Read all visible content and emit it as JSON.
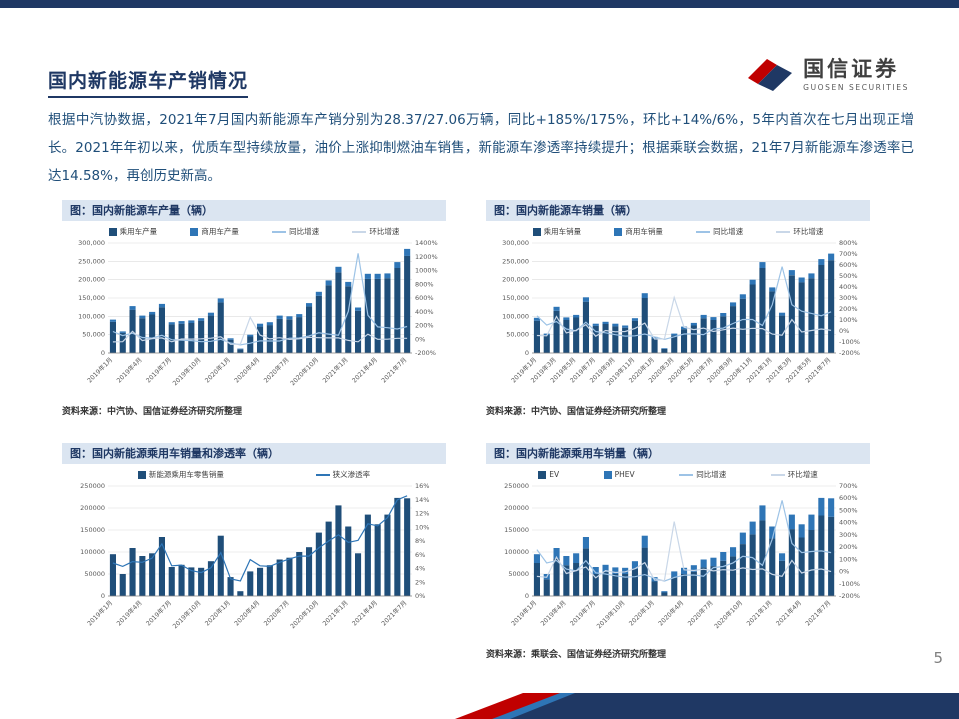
{
  "page": {
    "title": "国内新能源车产销情况",
    "paragraph": "根据中汽协数据，2021年7月国内新能源车产销分别为28.37/27.06万辆，同比+185%/175%，环比+14%/6%，5年内首次在七月出现正增长。2021年年初以来，优质车型持续放量，油价上涨抑制燃油车销售，新能源车渗透率持续提升；根据乘联会数据，21年7月新能源车渗透率已达14.58%，再创历史新高。",
    "page_number": "5",
    "accent_navy": "#1f3864",
    "accent_red": "#c00000"
  },
  "logo": {
    "cn": "国信证券",
    "en": "GUOSEN SECURITIES"
  },
  "chart_data": [
    {
      "type": "bar",
      "title": "图：国内新能源车产量（辆）",
      "source": "资料来源：中汽协、国信证券经济研究所整理",
      "x": [
        "2019年1月",
        "2019年2月",
        "2019年3月",
        "2019年4月",
        "2019年5月",
        "2019年6月",
        "2019年7月",
        "2019年8月",
        "2019年9月",
        "2019年10月",
        "2019年11月",
        "2019年12月",
        "2020年1月",
        "2020年2月",
        "2020年3月",
        "2020年4月",
        "2020年5月",
        "2020年6月",
        "2020年7月",
        "2020年8月",
        "2020年9月",
        "2020年10月",
        "2020年11月",
        "2020年12月",
        "2021年1月",
        "2021年2月",
        "2021年3月",
        "2021年4月",
        "2021年5月",
        "2021年6月",
        "2021年7月"
      ],
      "x_label_every": 3,
      "left_axis": {
        "min": 0,
        "max": 300000,
        "step": 50000,
        "format": "comma"
      },
      "right_axis": {
        "min": -200,
        "max": 1400,
        "step": 200,
        "format": "percent"
      },
      "bar_series": [
        {
          "name": "乘用车产量",
          "color": "#1f4e79",
          "values": [
            85000,
            55000,
            118000,
            95000,
            105000,
            125000,
            78000,
            80000,
            82000,
            88000,
            102000,
            138000,
            36000,
            10000,
            45000,
            72000,
            76000,
            93000,
            92000,
            98000,
            127000,
            156000,
            185000,
            220000,
            182000,
            115000,
            202000,
            202000,
            204000,
            232000,
            265000
          ]
        },
        {
          "name": "商用车产量",
          "color": "#2e75b6",
          "values": [
            6000,
            4000,
            10000,
            7000,
            7000,
            9000,
            6000,
            7000,
            7000,
            7000,
            8000,
            11000,
            4000,
            2000,
            5000,
            8000,
            8000,
            9000,
            8000,
            8000,
            9000,
            11000,
            13000,
            15000,
            12000,
            9000,
            14000,
            14000,
            13000,
            16000,
            19000
          ]
        }
      ],
      "line_series": [
        {
          "name": "同比增速",
          "color": "#9dc3e6",
          "values": [
            113,
            53,
            88,
            25,
            17,
            57,
            -7,
            -12,
            -20,
            -35,
            -30,
            -1,
            -55,
            -82,
            -57,
            -22,
            -26,
            -25,
            15,
            18,
            48,
            94,
            75,
            59,
            405,
            1250,
            349,
            180,
            168,
            149,
            185
          ]
        },
        {
          "name": "环比增速",
          "color": "#c9d7e8",
          "values": [
            -39,
            -35,
            115,
            -20,
            10,
            19,
            -37,
            3,
            2,
            7,
            16,
            35,
            -73,
            -70,
            320,
            60,
            5,
            22,
            -2,
            6,
            28,
            23,
            19,
            19,
            -17,
            -37,
            73,
            0,
            1,
            14,
            14
          ]
        }
      ]
    },
    {
      "type": "bar",
      "title": "图：国内新能源车销量（辆）",
      "source": "资料来源：中汽协、国信证券经济研究所整理",
      "x": [
        "2019年1月",
        "2019年2月",
        "2019年3月",
        "2019年4月",
        "2019年5月",
        "2019年6月",
        "2019年7月",
        "2019年8月",
        "2019年9月",
        "2019年10月",
        "2019年11月",
        "2019年12月",
        "2020年1月",
        "2020年2月",
        "2020年3月",
        "2020年4月",
        "2020年5月",
        "2020年6月",
        "2020年7月",
        "2020年8月",
        "2020年9月",
        "2020年10月",
        "2020年11月",
        "2020年12月",
        "2021年1月",
        "2021年2月",
        "2021年3月",
        "2021年4月",
        "2021年5月",
        "2021年6月",
        "2021年7月"
      ],
      "x_label_every": 2,
      "left_axis": {
        "min": 0,
        "max": 300000,
        "step": 50000,
        "format": "comma"
      },
      "right_axis": {
        "min": -200,
        "max": 800,
        "step": 100,
        "format": "percent"
      },
      "bar_series": [
        {
          "name": "乘用车销量",
          "color": "#1f4e79",
          "values": [
            88000,
            49000,
            115000,
            90000,
            97000,
            140000,
            74000,
            79000,
            73000,
            69000,
            88000,
            150000,
            40000,
            11000,
            48000,
            65000,
            75000,
            95000,
            90000,
            100000,
            128000,
            148000,
            187000,
            232000,
            168000,
            102000,
            212000,
            193000,
            204000,
            240000,
            253000
          ]
        },
        {
          "name": "商用车销量",
          "color": "#2e75b6",
          "values": [
            8000,
            4000,
            11000,
            7000,
            7000,
            12000,
            6000,
            6000,
            7000,
            6000,
            7000,
            13000,
            4000,
            2000,
            5000,
            7000,
            7000,
            9000,
            8000,
            9000,
            10000,
            12000,
            13000,
            16000,
            11000,
            8000,
            14000,
            13000,
            13000,
            16000,
            18000
          ]
        }
      ],
      "line_series": [
        {
          "name": "同比增速",
          "color": "#9dc3e6",
          "values": [
            138,
            54,
            86,
            18,
            2,
            80,
            -5,
            -16,
            -34,
            -46,
            -44,
            -27,
            -54,
            -76,
            -53,
            -27,
            -25,
            -33,
            19,
            26,
            68,
            105,
            105,
            50,
            239,
            585,
            239,
            180,
            160,
            139,
            175
          ]
        },
        {
          "name": "环比增速",
          "color": "#c9d7e8",
          "values": [
            -41,
            -44,
            132,
            -17,
            6,
            57,
            -47,
            5,
            -7,
            -5,
            24,
            72,
            -73,
            -72,
            305,
            35,
            13,
            26,
            -5,
            11,
            26,
            15,
            25,
            22,
            -28,
            -38,
            105,
            -9,
            5,
            18,
            6
          ]
        }
      ]
    },
    {
      "type": "bar",
      "title": "图：国内新能源乘用车销量和渗透率（辆）",
      "source": "",
      "x": [
        "2019年1月",
        "2019年2月",
        "2019年3月",
        "2019年4月",
        "2019年5月",
        "2019年6月",
        "2019年7月",
        "2019年8月",
        "2019年9月",
        "2019年10月",
        "2019年11月",
        "2019年12月",
        "2020年1月",
        "2020年2月",
        "2020年3月",
        "2020年4月",
        "2020年5月",
        "2020年6月",
        "2020年7月",
        "2020年8月",
        "2020年9月",
        "2020年10月",
        "2020年11月",
        "2020年12月",
        "2021年1月",
        "2021年2月",
        "2021年3月",
        "2021年4月",
        "2021年5月",
        "2021年6月",
        "2021年7月"
      ],
      "x_label_every": 3,
      "left_axis": {
        "min": 0,
        "max": 250000,
        "step": 50000,
        "format": "plain"
      },
      "right_axis": {
        "min": 0,
        "max": 16,
        "step": 2,
        "format": "percent"
      },
      "bar_series": [
        {
          "name": "新能源乘用车零售销量",
          "color": "#1f4e79",
          "values": [
            95000,
            50000,
            109000,
            91000,
            97000,
            134000,
            66000,
            71000,
            65000,
            64000,
            79000,
            137000,
            43000,
            11000,
            56000,
            64000,
            70000,
            83000,
            87000,
            100000,
            111000,
            144000,
            169000,
            206000,
            158000,
            97000,
            185000,
            163000,
            185000,
            223000,
            222000
          ]
        }
      ],
      "line_series": [
        {
          "name": "狭义渗透率",
          "color": "#2e75b6",
          "values": [
            4.8,
            4.3,
            5.0,
            4.9,
            5.5,
            7.6,
            4.4,
            4.5,
            3.7,
            3.4,
            4.1,
            6.3,
            2.5,
            2.2,
            5.3,
            4.4,
            4.3,
            4.9,
            5.4,
            5.8,
            5.8,
            7.0,
            8.0,
            8.9,
            7.8,
            8.1,
            10.5,
            10.2,
            11.4,
            14.0,
            14.58
          ]
        }
      ]
    },
    {
      "type": "bar",
      "title": "图：国内新能源乘用车销量（辆）",
      "source": "资料来源：乘联会、国信证券经济研究所整理",
      "x": [
        "2019年1月",
        "2019年2月",
        "2019年3月",
        "2019年4月",
        "2019年5月",
        "2019年6月",
        "2019年7月",
        "2019年8月",
        "2019年9月",
        "2019年10月",
        "2019年11月",
        "2019年12月",
        "2020年1月",
        "2020年2月",
        "2020年3月",
        "2020年4月",
        "2020年5月",
        "2020年6月",
        "2020年7月",
        "2020年8月",
        "2020年9月",
        "2020年10月",
        "2020年11月",
        "2020年12月",
        "2021年1月",
        "2021年2月",
        "2021年3月",
        "2021年4月",
        "2021年5月",
        "2021年6月",
        "2021年7月"
      ],
      "x_label_every": 3,
      "left_axis": {
        "min": 0,
        "max": 250000,
        "step": 50000,
        "format": "plain"
      },
      "right_axis": {
        "min": -200,
        "max": 700,
        "step": 100,
        "format": "percent"
      },
      "bar_series": [
        {
          "name": "EV",
          "color": "#1f4e79",
          "values": [
            75000,
            38000,
            85000,
            70000,
            75000,
            108000,
            50000,
            55000,
            50000,
            50000,
            62000,
            110000,
            33000,
            8000,
            44000,
            50000,
            55000,
            65000,
            68000,
            80000,
            90000,
            118000,
            140000,
            172000,
            131000,
            80000,
            152000,
            133000,
            150000,
            183000,
            180000
          ]
        },
        {
          "name": "PHEV",
          "color": "#2e75b6",
          "values": [
            20000,
            12000,
            24000,
            21000,
            22000,
            26000,
            16000,
            16000,
            15000,
            14000,
            17000,
            27000,
            10000,
            3000,
            12000,
            14000,
            15000,
            18000,
            19000,
            20000,
            21000,
            26000,
            29000,
            34000,
            27000,
            17000,
            33000,
            30000,
            35000,
            40000,
            42000
          ]
        }
      ],
      "line_series": [
        {
          "name": "同比增速",
          "color": "#9dc3e6",
          "values": [
            180,
            70,
            90,
            20,
            5,
            90,
            -10,
            -20,
            -35,
            -45,
            -42,
            -25,
            -55,
            -78,
            -49,
            -30,
            -28,
            -38,
            32,
            41,
            71,
            125,
            114,
            50,
            267,
            582,
            230,
            155,
            164,
            169,
            155
          ]
        },
        {
          "name": "环比增速",
          "color": "#c9d7e8",
          "values": [
            -40,
            -47,
            118,
            -16,
            7,
            38,
            -51,
            8,
            -8,
            -2,
            23,
            73,
            -69,
            -74,
            409,
            14,
            9,
            19,
            5,
            15,
            11,
            30,
            17,
            22,
            -23,
            -39,
            91,
            -12,
            13,
            21,
            0
          ]
        }
      ]
    }
  ]
}
